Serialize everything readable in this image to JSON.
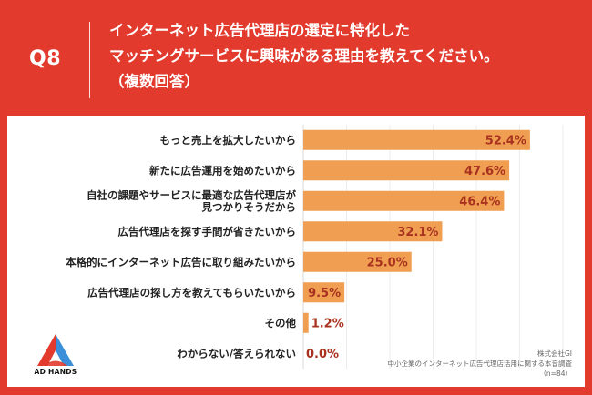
{
  "header": {
    "question": "Q8",
    "title_lines": [
      "インターネット広告代理店の選定に特化した",
      "マッチングサービスに興味がある理由を教えてください。",
      "（複数回答）"
    ]
  },
  "chart_data": {
    "type": "bar",
    "orientation": "horizontal",
    "categories": [
      [
        "もっと売上を拡大したいから"
      ],
      [
        "新たに広告運用を始めたいから"
      ],
      [
        "自社の課題やサービスに最適な広告代理店が",
        "見つかりそうだから"
      ],
      [
        "広告代理店を探す手間が省きたいから"
      ],
      [
        "本格的にインターネット広告に取り組みたいから"
      ],
      [
        "広告代理店の探し方を教えてもらいたいから"
      ],
      [
        "その他"
      ],
      [
        "わからない/答えられない"
      ]
    ],
    "values": [
      52.4,
      47.6,
      46.4,
      32.1,
      25.0,
      9.5,
      1.2,
      0.0
    ],
    "value_labels": [
      "52.4%",
      "47.6%",
      "46.4%",
      "32.1%",
      "25.0%",
      "9.5%",
      "1.2%",
      "0.0%"
    ],
    "xlim": [
      0,
      60
    ],
    "bar_color": "#ef9e52",
    "grid": true
  },
  "logo": {
    "text": "AD HANDS"
  },
  "source": {
    "lines": [
      "株式会社GI",
      "中小企業のインターネット広告代理店活用に関する本音調査",
      "（n=84）"
    ]
  },
  "colors": {
    "background": "#e23b2e",
    "bar": "#ef9e52",
    "value_text": "#a8321f"
  }
}
